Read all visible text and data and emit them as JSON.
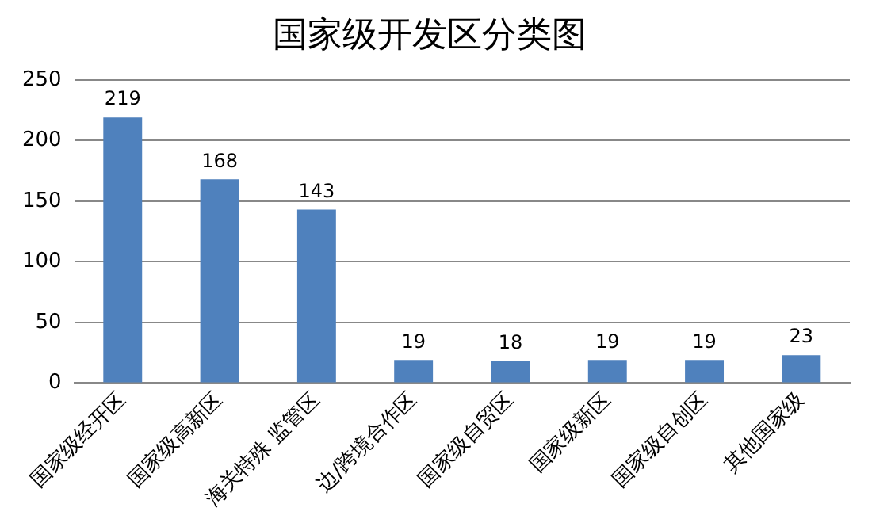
{
  "chart_data": {
    "type": "bar",
    "title": "国家级开发区分类图",
    "categories": [
      "国家级经开区",
      "国家级高新区",
      "海关特殊 监管区",
      "边/跨境合作区",
      "国家级自贸区",
      "国家级新区",
      "国家级自创区",
      "其他国家级"
    ],
    "values": [
      219,
      168,
      143,
      19,
      18,
      19,
      19,
      23
    ],
    "color": "#4f81bd",
    "ylim": [
      0,
      250
    ],
    "yticks": [
      0,
      50,
      100,
      150,
      200,
      250
    ],
    "grid": "y",
    "data_labels": true
  }
}
